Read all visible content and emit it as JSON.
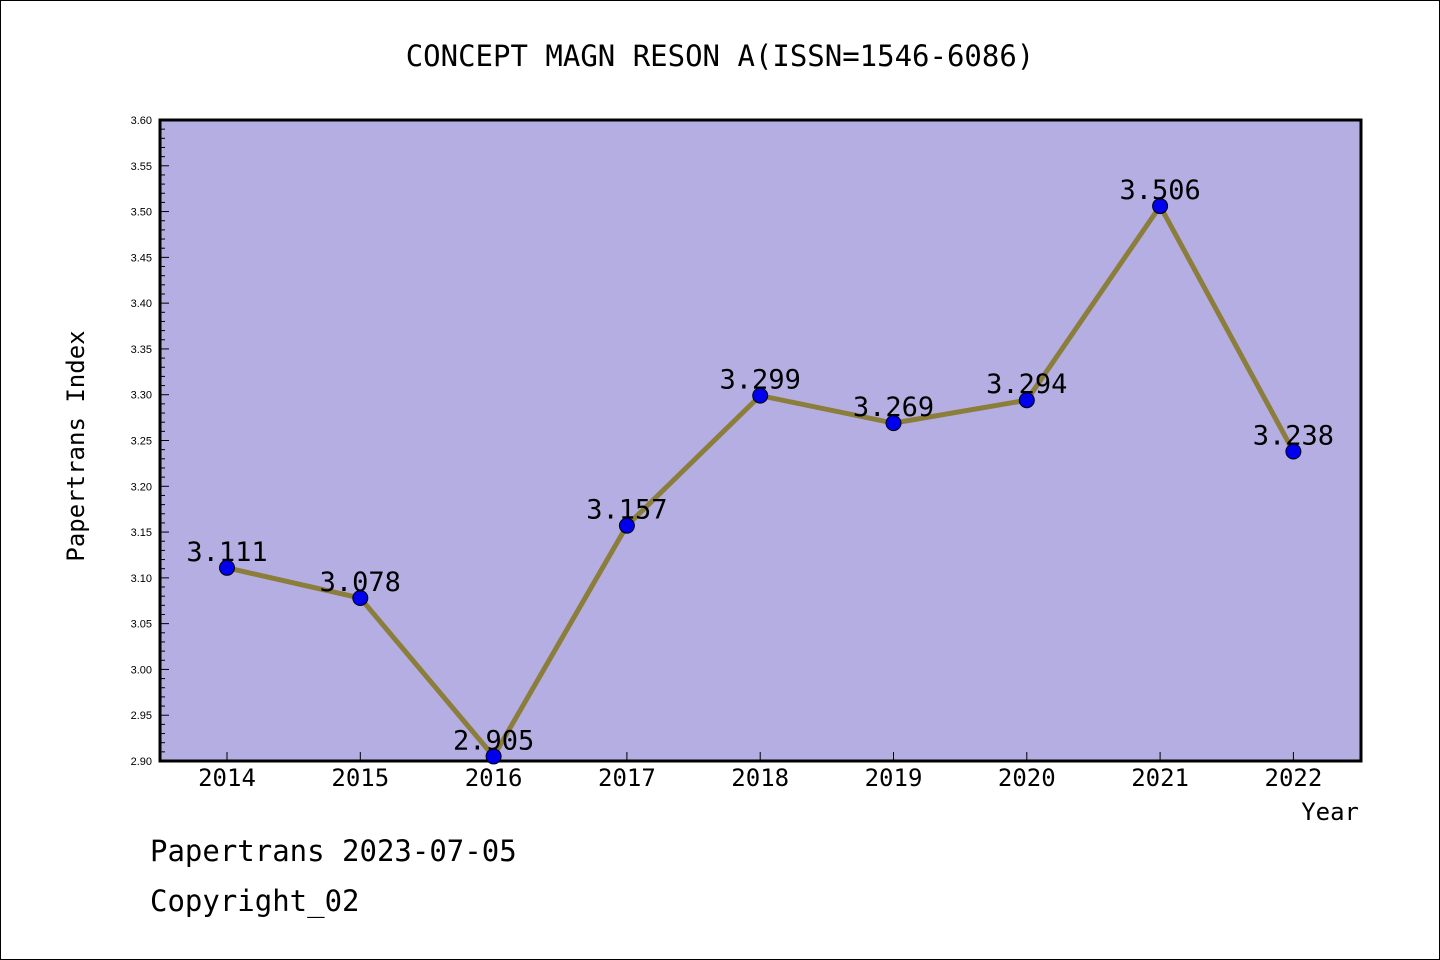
{
  "chart_data": {
    "type": "line",
    "title": "CONCEPT MAGN RESON A(ISSN=1546-6086)",
    "xlabel": "Year",
    "ylabel": "Papertrans Index",
    "categories": [
      "2014",
      "2015",
      "2016",
      "2017",
      "2018",
      "2019",
      "2020",
      "2021",
      "2022"
    ],
    "series": [
      {
        "values": [
          3.111,
          3.078,
          2.905,
          3.157,
          3.299,
          3.269,
          3.294,
          3.506,
          3.238
        ],
        "labels": [
          "3.111",
          "3.078",
          "2.905",
          "3.157",
          "3.299",
          "3.269",
          "3.294",
          "3.506",
          "3.238"
        ]
      }
    ],
    "ylim": [
      2.9,
      3.6
    ],
    "yticks": [
      "2.90",
      "2.95",
      "3.00",
      "3.05",
      "3.10",
      "3.15",
      "3.20",
      "3.25",
      "3.30",
      "3.35",
      "3.40",
      "3.45",
      "3.50",
      "3.55",
      "3.60"
    ],
    "grid": false,
    "colors": {
      "plot_background": "#b4aee3",
      "line": "#8b7d3a",
      "marker": "#0000ee"
    }
  },
  "footer": {
    "source": "Papertrans 2023-07-05",
    "copyright": "Copyright_02"
  }
}
